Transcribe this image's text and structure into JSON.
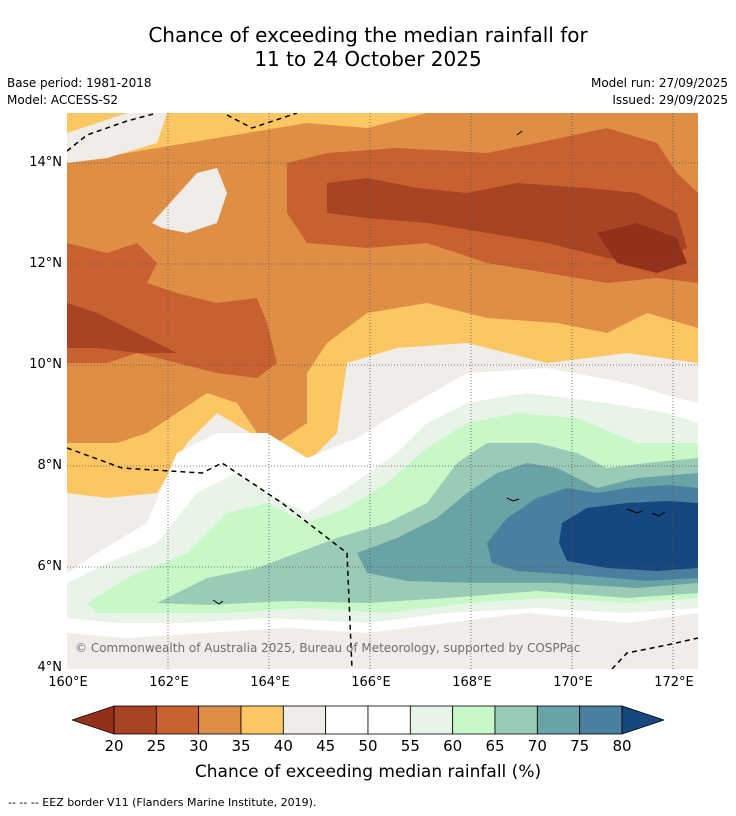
{
  "title": {
    "line1": "Chance of exceeding the median rainfall for",
    "line2": "11 to 24 October 2025"
  },
  "meta": {
    "base_period": "Base period: 1981-2018",
    "model": "Model: ACCESS-S2",
    "model_run": "Model run: 27/09/2025",
    "issued": "Issued: 29/09/2025"
  },
  "map": {
    "lat_labels": [
      "14°N",
      "12°N",
      "10°N",
      "8°N",
      "6°N",
      "4°N"
    ],
    "lon_labels": [
      "160°E",
      "162°E",
      "164°E",
      "166°E",
      "168°E",
      "170°E",
      "172°E"
    ],
    "copyright": "© Commonwealth of Australia 2025, Bureau of Meteorology, supported by COSPPac"
  },
  "colorbar": {
    "ticks": [
      "20",
      "25",
      "30",
      "35",
      "40",
      "45",
      "50",
      "55",
      "60",
      "65",
      "70",
      "75",
      "80"
    ],
    "colors": [
      "#a84424",
      "#c9602f",
      "#df8f45",
      "#fcc763",
      "#f0ece7",
      "#ffffff",
      "#ffffff",
      "#e9f4e8",
      "#c8f7c8",
      "#9acbb6",
      "#6aa3a5",
      "#4a7fa0"
    ],
    "under_color": "#923019",
    "over_color": "#16477f",
    "title": "Chance of exceeding median rainfall (%)"
  },
  "footnote": "--  --  -- EEZ border V11 (Flanders Marine Institute, 2019)."
}
